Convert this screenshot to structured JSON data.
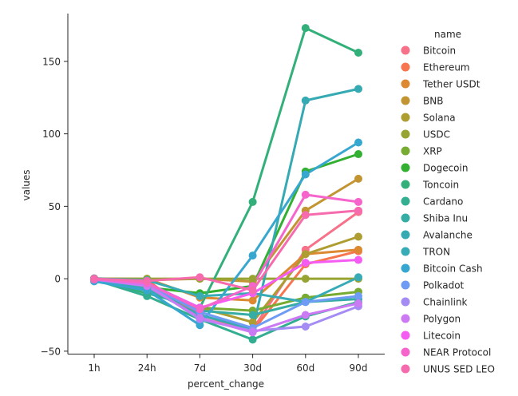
{
  "chart_data": {
    "type": "line",
    "xlabel": "percent_change",
    "ylabel": "values",
    "categories": [
      "1h",
      "24h",
      "7d",
      "30d",
      "60d",
      "90d"
    ],
    "ylim": [
      -52,
      183
    ],
    "yticks": [
      -50,
      0,
      50,
      100,
      150
    ],
    "grid": false,
    "legend": {
      "title": "name",
      "placement": "right"
    },
    "series": [
      {
        "name": "Bitcoin",
        "color": "#f77189",
        "values": [
          0.3,
          -0.8,
          -28,
          -35,
          20,
          46
        ]
      },
      {
        "name": "Ethereum",
        "color": "#f7754f",
        "values": [
          0.2,
          -1.5,
          -25,
          -36,
          10,
          19
        ]
      },
      {
        "name": "Tether USDt",
        "color": "#dc8932",
        "values": [
          0.0,
          0.0,
          -13,
          -15,
          17,
          20
        ]
      },
      {
        "name": "BNB",
        "color": "#c39532",
        "values": [
          0.0,
          -1.0,
          0,
          -2,
          47,
          69
        ]
      },
      {
        "name": "Solana",
        "color": "#ae9d31",
        "values": [
          -0.5,
          -5,
          -20,
          -30,
          17,
          29
        ]
      },
      {
        "name": "USDC",
        "color": "#97a431",
        "values": [
          0.0,
          0.0,
          0,
          0,
          0,
          0
        ]
      },
      {
        "name": "XRP",
        "color": "#77ab31",
        "values": [
          -0.3,
          -5,
          -20,
          -22,
          -13,
          -9
        ]
      },
      {
        "name": "Dogecoin",
        "color": "#33b032",
        "values": [
          -0.5,
          -6,
          -10,
          -5,
          74,
          86
        ]
      },
      {
        "name": "Toncoin",
        "color": "#33b07a",
        "values": [
          -0.8,
          -10,
          -20,
          53,
          173,
          156
        ]
      },
      {
        "name": "Cardano",
        "color": "#34ae91",
        "values": [
          -0.6,
          -12,
          -28,
          -42,
          -26,
          -16
        ]
      },
      {
        "name": "Shiba Inu",
        "color": "#35aca4",
        "values": [
          -0.5,
          -6,
          -22,
          -25,
          -16,
          -14
        ]
      },
      {
        "name": "Avalanche",
        "color": "#36aab3",
        "values": [
          -1.2,
          -7,
          -25,
          -35,
          123,
          131
        ]
      },
      {
        "name": "TRON",
        "color": "#37abb6",
        "values": [
          0.2,
          -1,
          -12,
          -10,
          -16,
          1
        ]
      },
      {
        "name": "Bitcoin Cash",
        "color": "#38a7d0",
        "values": [
          -1.8,
          -8,
          -32,
          16,
          72,
          94
        ]
      },
      {
        "name": "Polkadot",
        "color": "#6e9bf4",
        "values": [
          -0.5,
          -4,
          -23,
          -34,
          -16,
          -12
        ]
      },
      {
        "name": "Chainlink",
        "color": "#a48cf4",
        "values": [
          -0.5,
          -4,
          -28,
          -36,
          -33,
          -19
        ]
      },
      {
        "name": "Polygon",
        "color": "#cc7af4",
        "values": [
          -0.5,
          -5,
          -27,
          -37,
          -25,
          -17
        ]
      },
      {
        "name": "Litecoin",
        "color": "#f45cf2",
        "values": [
          -0.4,
          -3,
          -20,
          -10,
          11,
          13
        ]
      },
      {
        "name": "NEAR Protocol",
        "color": "#f565cc",
        "values": [
          -0.3,
          -3,
          -21,
          -5,
          58,
          53
        ]
      },
      {
        "name": "UNUS SED LEO",
        "color": "#f66bad",
        "values": [
          0.0,
          -1.5,
          1,
          -8,
          44,
          47
        ]
      }
    ]
  }
}
